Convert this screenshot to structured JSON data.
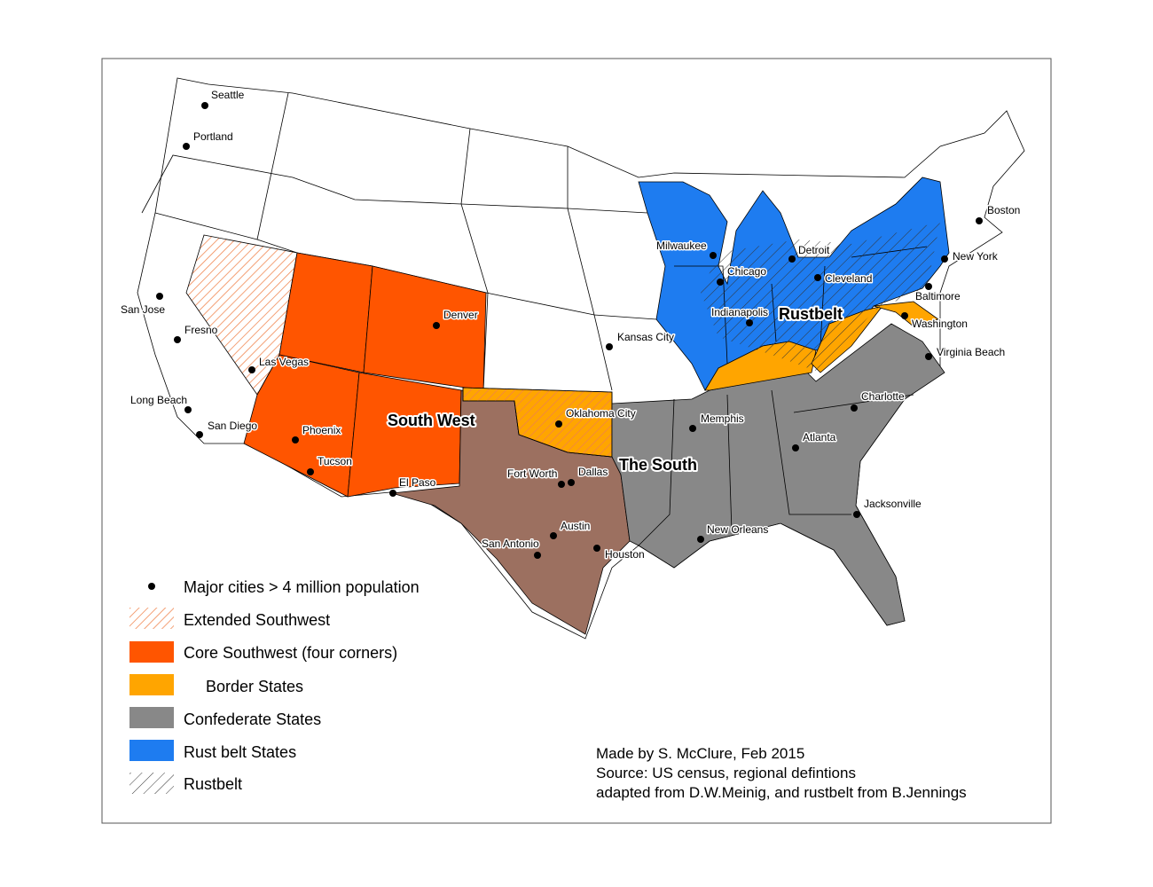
{
  "cities": [
    "Seattle",
    "Portland",
    "San Jose",
    "Fresno",
    "Las Vegas",
    "Long Beach",
    "San Diego",
    "Phoenix",
    "Tucson",
    "Denver",
    "El Paso",
    "Oklahoma City",
    "Fort Worth",
    "Dallas",
    "Austin",
    "San Antonio",
    "Houston",
    "Kansas City",
    "Memphis",
    "New Orleans",
    "Atlanta",
    "Jacksonville",
    "Charlotte",
    "Milwaukee",
    "Chicago",
    "Detroit",
    "Cleveland",
    "Indianapolis",
    "Baltimore",
    "Washington",
    "Virginia Beach",
    "New York",
    "Boston"
  ],
  "region_labels": [
    "South West",
    "The South",
    "Rustbelt"
  ],
  "legend": [
    "Major cities > 4 million population",
    "Extended Southwest",
    "Core Southwest (four corners)",
    "Border States",
    "Confederate States",
    "Rust belt States",
    "Rustbelt"
  ],
  "credits": [
    "Made by S. McClure, Feb 2015",
    "Source: US census, regional defintions",
    "adapted from D.W.Meinig, and rustbelt from B.Jennings"
  ]
}
